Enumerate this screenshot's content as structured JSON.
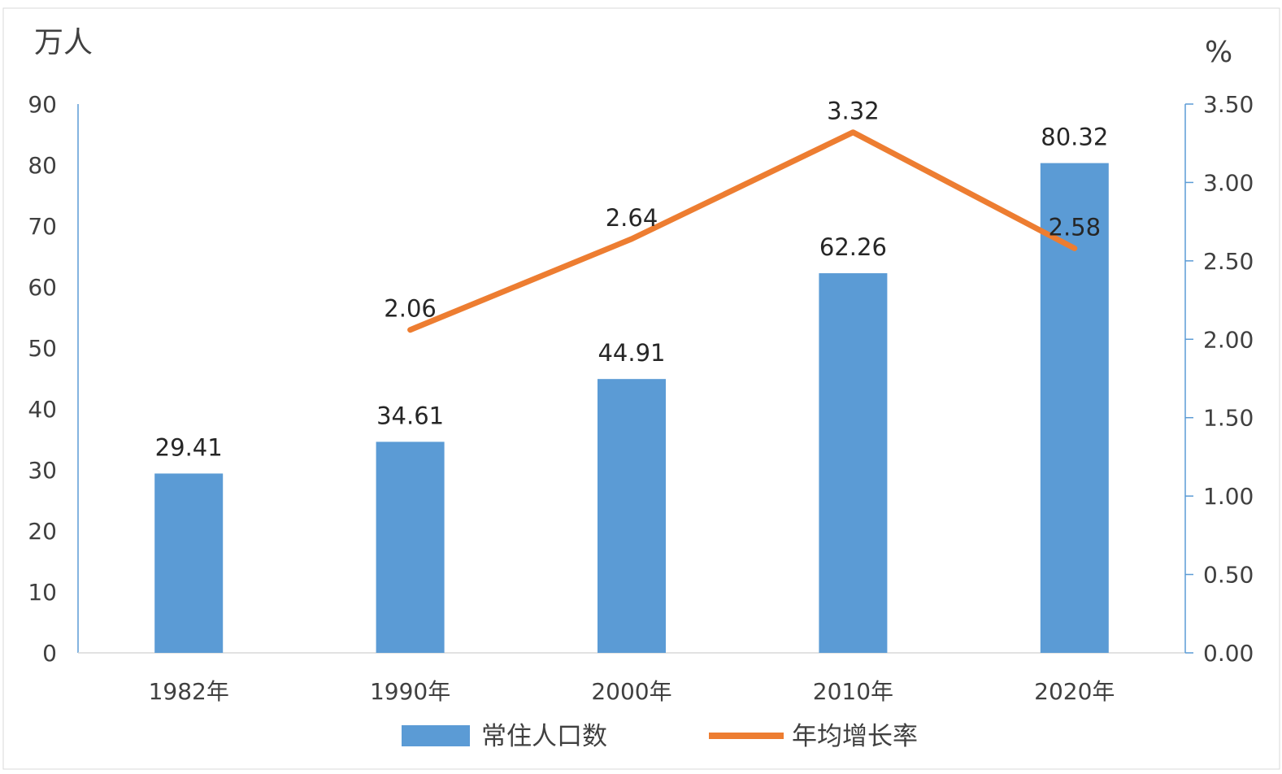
{
  "chart_data": {
    "type": "bar+line",
    "title": "",
    "categories": [
      "1982年",
      "1990年",
      "2000年",
      "2010年",
      "2020年"
    ],
    "series": [
      {
        "name": "常住人口数",
        "type": "bar",
        "axis": "left",
        "values": [
          29.41,
          34.61,
          44.91,
          62.26,
          80.32
        ],
        "labels": [
          "29.41",
          "34.61",
          "44.91",
          "62.26",
          "80.32"
        ]
      },
      {
        "name": "年均增长率",
        "type": "line",
        "axis": "right",
        "values": [
          null,
          2.06,
          2.64,
          3.32,
          2.58
        ],
        "labels": [
          "",
          "2.06",
          "2.64",
          "3.32",
          "2.58"
        ]
      }
    ],
    "y_left": {
      "unit": "万人",
      "min": 0,
      "max": 90,
      "ticks": [
        "0",
        "10",
        "20",
        "30",
        "40",
        "50",
        "60",
        "70",
        "80",
        "90"
      ]
    },
    "y_right": {
      "unit": "%",
      "min": 0,
      "max": 3.5,
      "ticks": [
        "0.00",
        "0.50",
        "1.00",
        "1.50",
        "2.00",
        "2.50",
        "3.00",
        "3.50"
      ]
    },
    "legend_position": "bottom",
    "grid": false,
    "colors": {
      "bar": "#5b9bd5",
      "line": "#ed7d31",
      "axis": "#5b9bd5"
    }
  }
}
